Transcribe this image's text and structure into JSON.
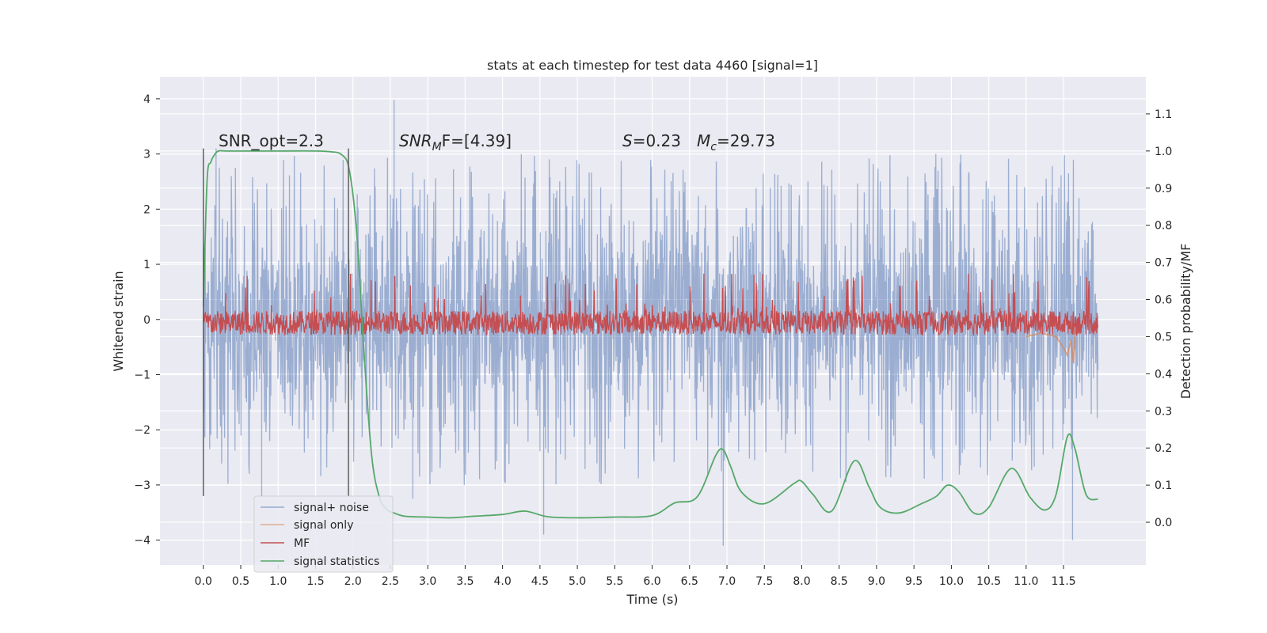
{
  "chart_data": {
    "type": "line",
    "title": "stats at each timestep for test data 4460 [signal=1]",
    "xlabel": "Time (s)",
    "ylabel": "Whitened strain",
    "y2label": "Detection probability/MF",
    "xlim": [
      -0.58,
      12.6
    ],
    "ylim": [
      -4.45,
      4.4
    ],
    "y2lim": [
      -0.115,
      1.2
    ],
    "xticks": [
      0.0,
      0.5,
      1.0,
      1.5,
      2.0,
      2.5,
      3.0,
      3.5,
      4.0,
      4.5,
      5.0,
      5.5,
      6.0,
      6.5,
      7.0,
      7.5,
      8.0,
      8.5,
      9.0,
      9.5,
      10.0,
      10.5,
      11.0,
      11.5
    ],
    "xtick_labels": [
      "0.0",
      "0.5",
      "1.0",
      "1.5",
      "2.0",
      "2.5",
      "3.0",
      "3.5",
      "4.0",
      "4.5",
      "5.0",
      "5.5",
      "6.0",
      "6.5",
      "7.0",
      "7.5",
      "8.0",
      "8.5",
      "9.0",
      "9.5",
      "10.0",
      "10.5",
      "11.0",
      "11.5"
    ],
    "yticks": [
      4,
      3,
      2,
      1,
      0,
      -1,
      -2,
      -3,
      -4
    ],
    "ytick_labels": [
      "4",
      "3",
      "2",
      "1",
      "0",
      "−1",
      "−2",
      "−3",
      "−4"
    ],
    "y2ticks": [
      1.1,
      1.0,
      0.9,
      0.8,
      0.7,
      0.6,
      0.5,
      0.4,
      0.3,
      0.2,
      0.1,
      0.0
    ],
    "y2tick_labels": [
      "1.1",
      "1.0",
      "0.9",
      "0.8",
      "0.7",
      "0.6",
      "0.5",
      "0.4",
      "0.3",
      "0.2",
      "0.1",
      "0.0"
    ],
    "grid": true,
    "legend_position": "lower-left",
    "annotations": {
      "snr_opt": "SNR_opt=2.3",
      "snr_mf_sym": "SNR",
      "snr_mf_sub": "M",
      "snr_mf_rest": "F=[4.39]",
      "s_sym": "S",
      "s_rest": "=0.23",
      "mc_sym": "M",
      "mc_sub": "c",
      "mc_rest": "=29.73"
    },
    "vlines": [
      {
        "x": 0.0,
        "y": [
          -3.2,
          3.1
        ]
      },
      {
        "x": 1.94,
        "y": [
          -3.2,
          3.1
        ]
      }
    ],
    "series": [
      {
        "name": "signal+ noise",
        "color": "#4c72b0",
        "axis": "left",
        "x_range": [
          0.0,
          11.96
        ],
        "envelope_typical": 2.2,
        "spikes": [
          {
            "x": 2.55,
            "y": 3.98
          },
          {
            "x": 0.17,
            "y": 3.1
          },
          {
            "x": 11.35,
            "y": 2.78
          },
          {
            "x": 4.55,
            "y": -3.9
          },
          {
            "x": 6.95,
            "y": -4.1
          },
          {
            "x": 11.62,
            "y": -4.0
          },
          {
            "x": 0.78,
            "y": -3.2
          },
          {
            "x": 2.8,
            "y": -3.25
          }
        ]
      },
      {
        "name": "signal only",
        "color": "#dd8452",
        "axis": "right",
        "x": [
          11.0,
          11.2,
          11.4,
          11.5,
          11.55,
          11.6,
          11.63,
          11.66,
          11.7
        ],
        "y": [
          0.5,
          0.51,
          0.5,
          0.47,
          0.45,
          0.49,
          0.43,
          0.52,
          0.55
        ]
      },
      {
        "name": "MF",
        "color": "#c44e52",
        "axis": "right",
        "x_range": [
          0.0,
          11.96
        ],
        "baseline": 0.505,
        "typical_peak": 0.57,
        "max_peak": 0.67
      },
      {
        "name": "signal statistics",
        "color": "#55a868",
        "axis": "right",
        "x": [
          0.0,
          0.05,
          0.1,
          0.15,
          0.2,
          0.3,
          0.5,
          1.0,
          1.5,
          1.7,
          1.85,
          1.95,
          2.05,
          2.15,
          2.25,
          2.35,
          2.45,
          2.55,
          2.7,
          3.0,
          3.3,
          3.6,
          4.0,
          4.3,
          4.6,
          5.0,
          5.5,
          6.0,
          6.3,
          6.6,
          6.85,
          6.95,
          7.05,
          7.2,
          7.5,
          7.9,
          8.0,
          8.15,
          8.4,
          8.7,
          8.9,
          9.05,
          9.3,
          9.6,
          9.8,
          9.95,
          10.1,
          10.3,
          10.5,
          10.8,
          11.05,
          11.25,
          11.4,
          11.55,
          11.65,
          11.8,
          11.96
        ],
        "y": [
          0.58,
          0.92,
          0.97,
          0.99,
          1.0,
          1.0,
          1.0,
          1.0,
          1.0,
          0.998,
          0.99,
          0.95,
          0.78,
          0.45,
          0.18,
          0.07,
          0.035,
          0.025,
          0.016,
          0.014,
          0.012,
          0.016,
          0.021,
          0.03,
          0.015,
          0.012,
          0.014,
          0.018,
          0.052,
          0.068,
          0.18,
          0.195,
          0.15,
          0.08,
          0.05,
          0.105,
          0.11,
          0.075,
          0.03,
          0.165,
          0.095,
          0.04,
          0.025,
          0.05,
          0.07,
          0.1,
          0.082,
          0.025,
          0.04,
          0.145,
          0.068,
          0.033,
          0.075,
          0.23,
          0.2,
          0.075,
          0.062
        ]
      }
    ]
  }
}
